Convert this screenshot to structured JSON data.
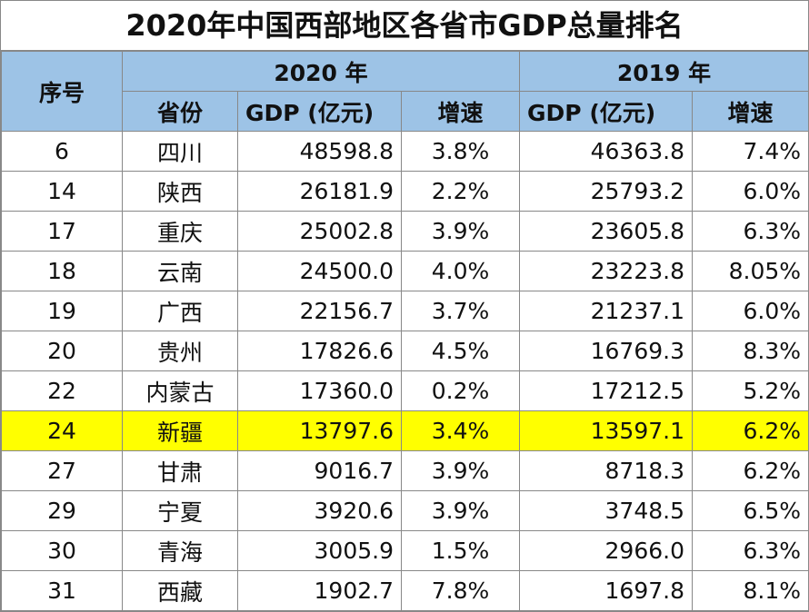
{
  "title": "2020年中国西部地区各省市GDP总量排名",
  "header": {
    "rank": "序号",
    "year2020": "2020 年",
    "year2019": "2019 年",
    "province": "省份",
    "gdp2020": "GDP (亿元)",
    "growth2020": "增速",
    "gdp2019": "GDP (亿元)",
    "growth2019": "增速"
  },
  "highlight_color": "#ffff00",
  "header_color": "#9dc3e6",
  "rows": [
    {
      "rank": "6",
      "province": "四川",
      "gdp2020": "48598.8",
      "growth2020": "3.8%",
      "gdp2019": "46363.8",
      "growth2019": "7.4%"
    },
    {
      "rank": "14",
      "province": "陕西",
      "gdp2020": "26181.9",
      "growth2020": "2.2%",
      "gdp2019": "25793.2",
      "growth2019": "6.0%"
    },
    {
      "rank": "17",
      "province": "重庆",
      "gdp2020": "25002.8",
      "growth2020": "3.9%",
      "gdp2019": "23605.8",
      "growth2019": "6.3%"
    },
    {
      "rank": "18",
      "province": "云南",
      "gdp2020": "24500.0",
      "growth2020": "4.0%",
      "gdp2019": "23223.8",
      "growth2019": "8.05%"
    },
    {
      "rank": "19",
      "province": "广西",
      "gdp2020": "22156.7",
      "growth2020": "3.7%",
      "gdp2019": "21237.1",
      "growth2019": "6.0%"
    },
    {
      "rank": "20",
      "province": "贵州",
      "gdp2020": "17826.6",
      "growth2020": "4.5%",
      "gdp2019": "16769.3",
      "growth2019": "8.3%"
    },
    {
      "rank": "22",
      "province": "内蒙古",
      "gdp2020": "17360.0",
      "growth2020": "0.2%",
      "gdp2019": "17212.5",
      "growth2019": "5.2%"
    },
    {
      "rank": "24",
      "province": "新疆",
      "gdp2020": "13797.6",
      "growth2020": "3.4%",
      "gdp2019": "13597.1",
      "growth2019": "6.2%",
      "highlight": true
    },
    {
      "rank": "27",
      "province": "甘肃",
      "gdp2020": "9016.7",
      "growth2020": "3.9%",
      "gdp2019": "8718.3",
      "growth2019": "6.2%"
    },
    {
      "rank": "29",
      "province": "宁夏",
      "gdp2020": "3920.6",
      "growth2020": "3.9%",
      "gdp2019": "3748.5",
      "growth2019": "6.5%"
    },
    {
      "rank": "30",
      "province": "青海",
      "gdp2020": "3005.9",
      "growth2020": "1.5%",
      "gdp2019": "2966.0",
      "growth2019": "6.3%"
    },
    {
      "rank": "31",
      "province": "西藏",
      "gdp2020": "1902.7",
      "growth2020": "7.8%",
      "gdp2019": "1697.8",
      "growth2019": "8.1%"
    }
  ]
}
